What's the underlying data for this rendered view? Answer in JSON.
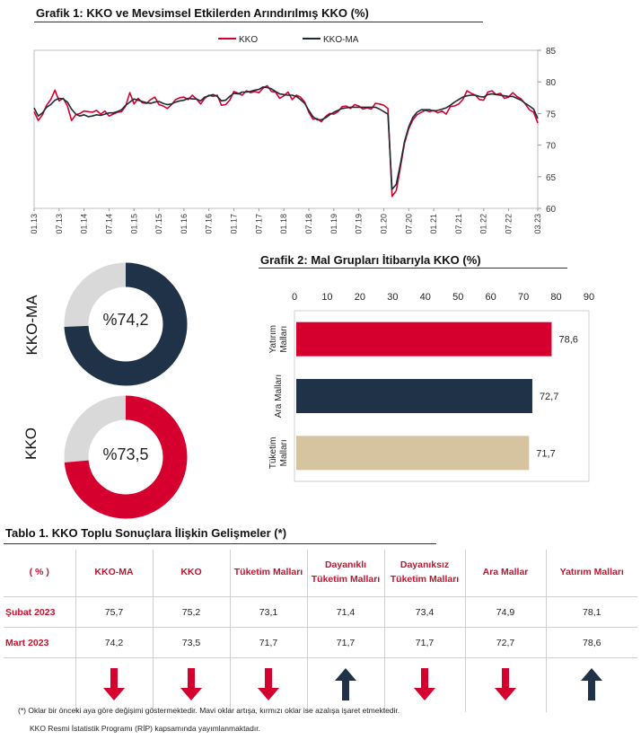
{
  "chart1": {
    "title": "Grafik 1: KKO ve Mevsimsel Etkilerden Arındırılmış KKO (%)",
    "legend": [
      "KKO",
      "KKO-MA"
    ],
    "colors": {
      "kko": "#d6002f",
      "kko_ma": "#1f2a36"
    }
  },
  "chart2": {
    "title": "Grafik 2: Mal Grupları İtibarıyla KKO (%)"
  },
  "donuts": [
    {
      "label": "KKO-MA",
      "value_text": "%74,2",
      "value": 74.2,
      "color": "#1f3247"
    },
    {
      "label": "KKO",
      "value_text": "%73,5",
      "value": 73.5,
      "color": "#d6002f"
    }
  ],
  "chart_data": [
    {
      "type": "line",
      "title": "Grafik 1: KKO ve Mevsimsel Etkilerden Arındırılmış KKO (%)",
      "x_tick_labels": [
        "01.13",
        "07.13",
        "01.14",
        "07.14",
        "01.15",
        "07.15",
        "01.16",
        "07.16",
        "01.17",
        "07.17",
        "01.18",
        "07.18",
        "01.19",
        "07.19",
        "01.20",
        "07.20",
        "01.21",
        "07.21",
        "01.22",
        "07.22",
        "03.23"
      ],
      "ylim": [
        60,
        85
      ],
      "y_ticks": [
        60,
        65,
        70,
        75,
        80,
        85
      ],
      "y_axis_side": "right",
      "grid": false,
      "legend_position": "top",
      "series": [
        {
          "name": "KKO",
          "values": [
            75.3,
            73.9,
            74.8,
            76.3,
            77.2,
            78.7,
            77.0,
            77.4,
            76.2,
            73.9,
            74.8,
            75.0,
            75.4,
            75.3,
            75.2,
            75.5,
            74.9,
            75.4,
            74.6,
            74.9,
            75.2,
            75.3,
            76.2,
            78.3,
            76.5,
            77.4,
            76.7,
            76.6,
            77.2,
            77.6,
            76.4,
            76.2,
            75.8,
            76.4,
            77.2,
            77.5,
            77.6,
            77.2,
            77.9,
            77.3,
            76.5,
            77.4,
            77.9,
            77.7,
            77.9,
            76.3,
            76.4,
            77.1,
            78.5,
            78.2,
            77.9,
            78.6,
            78.3,
            78.5,
            78.3,
            79.0,
            79.4,
            78.5,
            78.4,
            77.4,
            77.8,
            78.4,
            77.2,
            77.9,
            77.6,
            76.8,
            75.2,
            74.1,
            74.2,
            73.7,
            74.5,
            75.0,
            74.9,
            75.3,
            76.1,
            76.2,
            75.8,
            76.4,
            76.2,
            75.7,
            75.9,
            75.7,
            76.6,
            76.5,
            76.3,
            75.8,
            61.9,
            62.8,
            66.5,
            70.3,
            72.6,
            74.0,
            74.8,
            75.2,
            75.5,
            75.3,
            75.5,
            75.1,
            75.4,
            74.9,
            76.1,
            76.2,
            76.5,
            77.2,
            78.6,
            78.2,
            77.9,
            77.2,
            77.1,
            78.4,
            78.6,
            78.0,
            78.2,
            77.4,
            77.6,
            78.3,
            77.7,
            77.3,
            76.5,
            75.6,
            75.2,
            73.5
          ],
          "color": "#d6002f"
        },
        {
          "name": "KKO-MA",
          "values": [
            75.9,
            74.6,
            75.1,
            76.0,
            76.4,
            77.1,
            77.4,
            77.3,
            76.8,
            75.7,
            74.9,
            74.6,
            74.8,
            74.5,
            74.6,
            74.8,
            74.7,
            74.9,
            75.1,
            75.1,
            75.3,
            75.6,
            76.3,
            76.8,
            77.3,
            77.1,
            76.9,
            76.7,
            76.6,
            76.8,
            76.9,
            76.6,
            76.4,
            76.5,
            76.8,
            77.0,
            77.1,
            77.4,
            77.3,
            77.3,
            77.0,
            77.6,
            77.8,
            78.0,
            77.7,
            77.0,
            77.1,
            77.7,
            78.2,
            78.1,
            78.4,
            78.4,
            78.5,
            78.7,
            78.8,
            79.2,
            79.1,
            78.9,
            78.5,
            78.1,
            78.0,
            77.9,
            77.9,
            77.7,
            77.2,
            76.6,
            75.5,
            74.5,
            74.0,
            74.0,
            74.3,
            74.8,
            75.2,
            75.5,
            75.8,
            75.9,
            76.0,
            76.0,
            76.0,
            76.0,
            76.0,
            76.0,
            76.0,
            75.7,
            75.3,
            74.9,
            63.0,
            63.8,
            67.0,
            70.6,
            72.9,
            74.4,
            75.2,
            75.6,
            75.6,
            75.6,
            75.4,
            75.5,
            75.7,
            75.9,
            76.3,
            76.8,
            77.2,
            77.6,
            77.8,
            77.9,
            77.9,
            77.7,
            77.6,
            78.0,
            78.1,
            78.0,
            77.9,
            77.8,
            77.7,
            77.7,
            77.4,
            77.1,
            76.6,
            76.2,
            75.7,
            74.2
          ],
          "color": "#1f2a36"
        }
      ]
    },
    {
      "type": "bar",
      "orientation": "horizontal",
      "title": "Grafik 2: Mal Grupları İtibarıyla KKO (%)",
      "categories": [
        "Yatırım Malları",
        "Ara Malları",
        "Tüketim Malları"
      ],
      "category_lines": [
        [
          "Yatırım",
          "Malları"
        ],
        [
          "Ara Malları"
        ],
        [
          "Tüketim",
          "Malları"
        ]
      ],
      "values": [
        78.6,
        72.7,
        71.7
      ],
      "value_labels": [
        "78,6",
        "72,7",
        "71,7"
      ],
      "colors": [
        "#d6002f",
        "#1f3247",
        "#d6c4a0"
      ],
      "xlim": [
        0,
        90
      ],
      "x_ticks": [
        0,
        10,
        20,
        30,
        40,
        50,
        60,
        70,
        80,
        90
      ],
      "x_axis_side": "top"
    },
    {
      "type": "pie",
      "title": "KKO-MA",
      "center_label": "%74,2",
      "values": [
        74.2,
        25.8
      ],
      "colors": [
        "#1f3247",
        "#d9d9d9"
      ]
    },
    {
      "type": "pie",
      "title": "KKO",
      "center_label": "%73,5",
      "values": [
        73.5,
        26.5
      ],
      "colors": [
        "#d6002f",
        "#d9d9d9"
      ]
    }
  ],
  "table": {
    "title": "Tablo 1. KKO Toplu Sonuçlara İlişkin Gelişmeler (*)",
    "unit": "( % )",
    "headers": [
      "KKO-MA",
      "KKO",
      "Tüketim Malları",
      "Dayanıklı Tüketim Malları",
      "Dayanıksız Tüketim Malları",
      "Ara Mallar",
      "Yatırım Malları"
    ],
    "rows": [
      {
        "label": "Şubat 2023",
        "values": [
          "75,7",
          "75,2",
          "73,1",
          "71,4",
          "73,4",
          "74,9",
          "78,1"
        ]
      },
      {
        "label": "Mart 2023",
        "values": [
          "74,2",
          "73,5",
          "71,7",
          "71,7",
          "71,7",
          "72,7",
          "78,6"
        ]
      }
    ],
    "arrows": [
      {
        "direction": "down",
        "color": "#d6002f"
      },
      {
        "direction": "down",
        "color": "#d6002f"
      },
      {
        "direction": "down",
        "color": "#d6002f"
      },
      {
        "direction": "up",
        "color": "#1f3247"
      },
      {
        "direction": "down",
        "color": "#d6002f"
      },
      {
        "direction": "down",
        "color": "#d6002f"
      },
      {
        "direction": "up",
        "color": "#1f3247"
      }
    ]
  },
  "footnotes": [
    "(*) Oklar bir önceki aya göre değişimi göstermektedir. Mavi oklar artışa, kırmızı oklar ise azalışa işaret etmektedir.",
    "KKO Resmi İstatistik Programı (RİP) kapsamında yayımlanmaktadır."
  ]
}
